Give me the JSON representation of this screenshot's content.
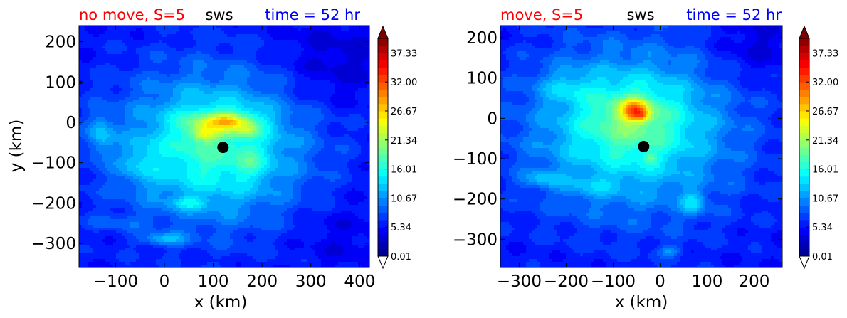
{
  "chart_data": [
    {
      "type": "heatmap",
      "title_left": "no move, S=5",
      "title_center": "sws",
      "title_right": "time = 52 hr",
      "title_colors": {
        "left": "#ff0000",
        "center": "#000000",
        "right": "#0000ff"
      },
      "xlabel": "x (km)",
      "ylabel": "y (km)",
      "xlim": [
        -175,
        420
      ],
      "ylim": [
        -360,
        240
      ],
      "xticks": [
        -100,
        0,
        100,
        200,
        300,
        400
      ],
      "xtick_labels": [
        "−100",
        "0",
        "100",
        "200",
        "300",
        "400"
      ],
      "yticks": [
        200,
        100,
        0,
        -100,
        -200,
        -300
      ],
      "ytick_labels": [
        "200",
        "100",
        "0",
        "−100",
        "−200",
        "−300"
      ],
      "center_marker": {
        "x": 120,
        "y": -62
      },
      "colorbar": {
        "ticks": [
          0.01,
          5.34,
          10.67,
          16.01,
          21.34,
          26.67,
          32.0,
          37.33
        ],
        "tick_labels": [
          "0.01",
          "5.34",
          "10.67",
          "16.01",
          "21.34",
          "26.67",
          "32.00",
          "37.33"
        ],
        "range": [
          0.01,
          40
        ],
        "extend": "both"
      },
      "field": {
        "background": 5.5,
        "blobs": [
          {
            "x": 100,
            "y": -60,
            "sx": 210,
            "sy": 200,
            "amp": 8
          },
          {
            "x": 100,
            "y": -60,
            "sx": 130,
            "sy": 130,
            "amp": 4
          },
          {
            "x": 120,
            "y": 0,
            "sx": 70,
            "sy": 28,
            "amp": 9
          },
          {
            "x": 80,
            "y": -30,
            "sx": 25,
            "sy": 18,
            "amp": 6
          },
          {
            "x": 170,
            "y": -20,
            "sx": 25,
            "sy": 15,
            "amp": 4
          },
          {
            "x": 135,
            "y": 5,
            "sx": 40,
            "sy": 15,
            "amp": 4
          },
          {
            "x": -130,
            "y": -30,
            "sx": 25,
            "sy": 50,
            "amp": 5
          },
          {
            "x": 0,
            "y": -290,
            "sx": 45,
            "sy": 15,
            "amp": 5
          },
          {
            "x": 50,
            "y": -200,
            "sx": 35,
            "sy": 15,
            "amp": 4
          },
          {
            "x": -100,
            "y": -250,
            "sx": 60,
            "sy": 20,
            "amp": 2
          },
          {
            "x": -50,
            "y": -100,
            "sx": 40,
            "sy": 50,
            "amp": 3
          },
          {
            "x": 180,
            "y": -100,
            "sx": 30,
            "sy": 40,
            "amp": 3
          },
          {
            "x": 350,
            "y": 150,
            "sx": 120,
            "sy": 110,
            "amp": -2.5
          },
          {
            "x": 360,
            "y": -280,
            "sx": 90,
            "sy": 90,
            "amp": -1.5
          }
        ],
        "ripple": 1.2
      }
    },
    {
      "type": "heatmap",
      "title_left": "move, S=5",
      "title_center": "sws",
      "title_right": "time = 52 hr",
      "title_colors": {
        "left": "#ff0000",
        "center": "#000000",
        "right": "#0000ff"
      },
      "xlabel": "x (km)",
      "ylabel": "",
      "xlim": [
        -340,
        260
      ],
      "ylim": [
        -370,
        230
      ],
      "xticks": [
        -300,
        -200,
        -100,
        0,
        100,
        200
      ],
      "xtick_labels": [
        "−300",
        "−200",
        "−100",
        "0",
        "100",
        "200"
      ],
      "yticks": [
        200,
        100,
        0,
        -100,
        -200,
        -300
      ],
      "ytick_labels": [
        "200",
        "100",
        "0",
        "−100",
        "−200",
        "−300"
      ],
      "center_marker": {
        "x": -35,
        "y": -70
      },
      "colorbar": {
        "ticks": [
          0.01,
          5.34,
          10.67,
          16.01,
          21.34,
          26.67,
          32.0,
          37.33
        ],
        "tick_labels": [
          "0.01",
          "5.34",
          "10.67",
          "16.01",
          "21.34",
          "26.67",
          "32.00",
          "37.33"
        ],
        "range": [
          0.01,
          40
        ],
        "extend": "both"
      },
      "field": {
        "background": 5.5,
        "blobs": [
          {
            "x": -60,
            "y": -30,
            "sx": 230,
            "sy": 210,
            "amp": 9.5
          },
          {
            "x": -60,
            "y": 0,
            "sx": 110,
            "sy": 90,
            "amp": 5
          },
          {
            "x": -55,
            "y": 20,
            "sx": 32,
            "sy": 28,
            "amp": 12
          },
          {
            "x": -40,
            "y": 10,
            "sx": 18,
            "sy": 15,
            "amp": 5
          },
          {
            "x": -200,
            "y": 80,
            "sx": 60,
            "sy": 40,
            "amp": 3
          },
          {
            "x": -250,
            "y": -150,
            "sx": 40,
            "sy": 20,
            "amp": 4
          },
          {
            "x": -20,
            "y": -100,
            "sx": 15,
            "sy": 15,
            "amp": 4
          },
          {
            "x": 70,
            "y": -210,
            "sx": 25,
            "sy": 30,
            "amp": 5
          },
          {
            "x": 20,
            "y": -330,
            "sx": 25,
            "sy": 15,
            "amp": 4
          },
          {
            "x": -150,
            "y": -170,
            "sx": 60,
            "sy": 25,
            "amp": 2
          },
          {
            "x": 200,
            "y": 180,
            "sx": 90,
            "sy": 90,
            "amp": -2.5
          }
        ],
        "ripple": 1.2
      }
    }
  ]
}
